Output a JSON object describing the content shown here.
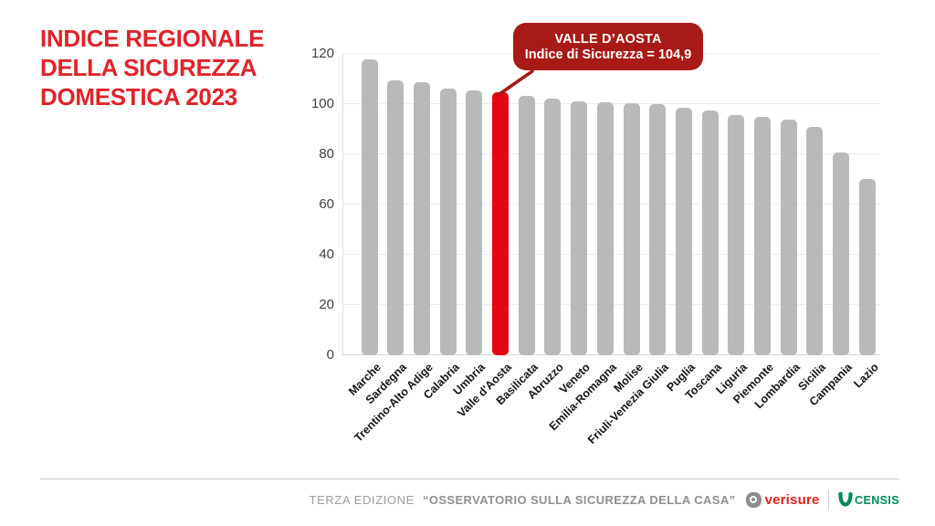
{
  "title": {
    "line1": "INDICE REGIONALE",
    "line2": "DELLA SICUREZZA",
    "line3": "DOMESTICA 2023"
  },
  "callout": {
    "region": "VALLE D’AOSTA",
    "value_line": "Indice di Sicurezza = 104,9"
  },
  "chart_data": {
    "type": "bar",
    "title": "Indice regionale della sicurezza domestica 2023",
    "categories": [
      "Marche",
      "Sardegna",
      "Trentino-Alto Adige",
      "Calabria",
      "Umbria",
      "Valle d'Aosta",
      "Basilicata",
      "Abruzzo",
      "Veneto",
      "Emilia-Romagna",
      "Molise",
      "Friuli-Venezia Giulia",
      "Puglia",
      "Toscana",
      "Liguria",
      "Piemonte",
      "Lombardia",
      "Sicilia",
      "Campania",
      "Lazio"
    ],
    "values": [
      117.7,
      109.4,
      108.8,
      106.2,
      105.3,
      104.9,
      103.3,
      102.2,
      101.2,
      100.7,
      100.4,
      100.1,
      98.6,
      97.5,
      95.7,
      95.0,
      93.8,
      91.0,
      80.6,
      70.2
    ],
    "highlight_category": "Valle d'Aosta",
    "highlight_value_label": "104,9",
    "xlabel": "",
    "ylabel": "",
    "ylim": [
      0,
      120
    ],
    "yticks": [
      0,
      20,
      40,
      60,
      80,
      100,
      120
    ],
    "grid": true,
    "legend": false
  },
  "colors": {
    "title_red": "#e0232a",
    "bar_gray": "#b9b9b9",
    "bar_highlight": "#e30613",
    "callout_bg": "#a81a17",
    "verisure_red": "#e32119",
    "censis_green": "#00885c"
  },
  "footer": {
    "edition": "TERZA EDIZIONE",
    "report": "“OSSERVATORIO SULLA SICUREZZA DELLA CASA”",
    "verisure_label": "verisure",
    "censis_label": "CENSIS"
  }
}
